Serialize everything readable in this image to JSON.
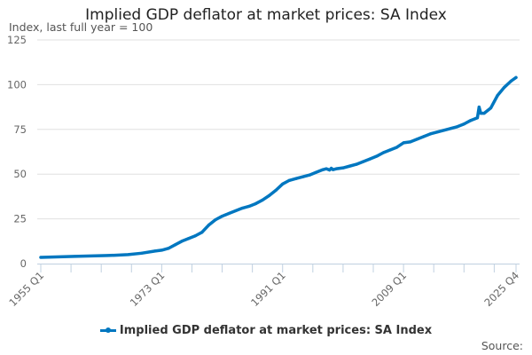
{
  "chart_data": {
    "type": "line",
    "title": "Implied GDP deflator at market prices: SA Index",
    "subtitle": "Index, last full year = 100",
    "source_label": "Source:",
    "xlabel": "",
    "ylabel": "",
    "ylim": [
      0,
      125
    ],
    "yticks": [
      0,
      25,
      50,
      75,
      100,
      125
    ],
    "xlim": [
      "1955 Q1",
      "2025 Q4"
    ],
    "xtick_labels": [
      "1955 Q1",
      "1973 Q1",
      "1991 Q1",
      "2009 Q1",
      "2025 Q4"
    ],
    "grid": "horizontal",
    "legend_position": "bottom",
    "color": "#0077c0",
    "series": [
      {
        "name": "Implied GDP deflator at market prices: SA Index",
        "points": [
          [
            "1955 Q1",
            3.5
          ],
          [
            "1960 Q1",
            4.0
          ],
          [
            "1965 Q1",
            4.5
          ],
          [
            "1968 Q1",
            5.0
          ],
          [
            "1970 Q1",
            5.8
          ],
          [
            "1972 Q1",
            7.0
          ],
          [
            "1973 Q1",
            7.5
          ],
          [
            "1974 Q1",
            8.5
          ],
          [
            "1975 Q1",
            10.5
          ],
          [
            "1976 Q1",
            12.5
          ],
          [
            "1977 Q1",
            14.0
          ],
          [
            "1978 Q1",
            15.5
          ],
          [
            "1979 Q1",
            17.5
          ],
          [
            "1980 Q1",
            21.5
          ],
          [
            "1981 Q1",
            24.5
          ],
          [
            "1982 Q1",
            26.5
          ],
          [
            "1983 Q1",
            28.0
          ],
          [
            "1984 Q1",
            29.5
          ],
          [
            "1985 Q1",
            31.0
          ],
          [
            "1986 Q1",
            32.0
          ],
          [
            "1987 Q1",
            33.5
          ],
          [
            "1988 Q1",
            35.5
          ],
          [
            "1989 Q1",
            38.0
          ],
          [
            "1990 Q1",
            41.0
          ],
          [
            "1991 Q1",
            44.5
          ],
          [
            "1992 Q1",
            46.5
          ],
          [
            "1993 Q1",
            47.5
          ],
          [
            "1994 Q1",
            48.5
          ],
          [
            "1995 Q1",
            49.5
          ],
          [
            "1996 Q1",
            51.0
          ],
          [
            "1997 Q1",
            52.5
          ],
          [
            "1997 Q3",
            53.0
          ],
          [
            "1998 Q1",
            52.3
          ],
          [
            "1998 Q2",
            53.3
          ],
          [
            "1998 Q3",
            52.5
          ],
          [
            "1999 Q1",
            53.0
          ],
          [
            "2000 Q1",
            53.5
          ],
          [
            "2001 Q1",
            54.5
          ],
          [
            "2002 Q1",
            55.5
          ],
          [
            "2003 Q1",
            57.0
          ],
          [
            "2004 Q1",
            58.5
          ],
          [
            "2005 Q1",
            60.0
          ],
          [
            "2006 Q1",
            62.0
          ],
          [
            "2007 Q1",
            63.5
          ],
          [
            "2008 Q1",
            65.0
          ],
          [
            "2009 Q1",
            67.5
          ],
          [
            "2010 Q1",
            68.0
          ],
          [
            "2011 Q1",
            69.5
          ],
          [
            "2012 Q1",
            71.0
          ],
          [
            "2013 Q1",
            72.5
          ],
          [
            "2014 Q1",
            73.5
          ],
          [
            "2015 Q1",
            74.5
          ],
          [
            "2016 Q1",
            75.5
          ],
          [
            "2017 Q1",
            76.5
          ],
          [
            "2018 Q1",
            78.0
          ],
          [
            "2019 Q1",
            80.0
          ],
          [
            "2020 Q1",
            81.5
          ],
          [
            "2020 Q2",
            87.5
          ],
          [
            "2020 Q3",
            84.0
          ],
          [
            "2021 Q1",
            84.0
          ],
          [
            "2022 Q1",
            87.0
          ],
          [
            "2023 Q1",
            94.0
          ],
          [
            "2024 Q1",
            98.5
          ],
          [
            "2025 Q1",
            102.0
          ],
          [
            "2025 Q4",
            104.0
          ]
        ]
      }
    ]
  }
}
